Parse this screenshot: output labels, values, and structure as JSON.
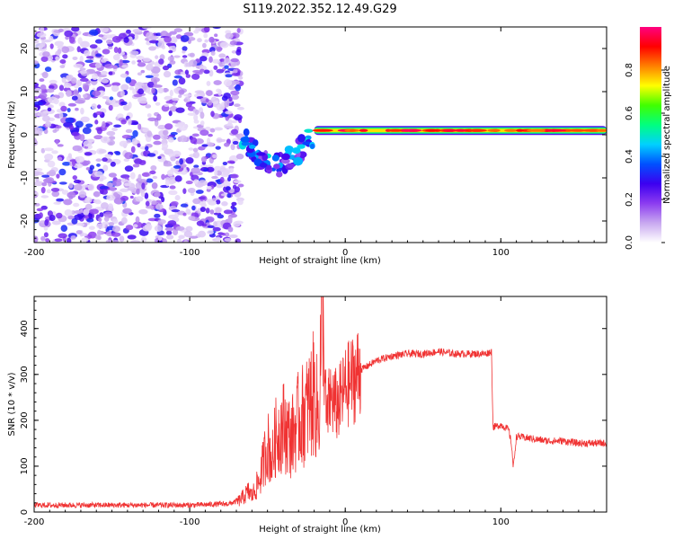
{
  "figure_title": "S119.2022.352.12.49.G29",
  "chart_data": [
    {
      "type": "heatmap",
      "xlabel": "Height of straight line (km)",
      "ylabel": "Frequency (Hz)",
      "xlim": [
        -200,
        168
      ],
      "ylim": [
        -25,
        25
      ],
      "x_ticks": [
        "-200",
        "-100",
        "0",
        "100"
      ],
      "y_ticks": [
        "20",
        "10",
        "0",
        "-10",
        "-20"
      ],
      "colorbar": {
        "label": "Normalized spectral amplitude",
        "range": [
          0,
          1
        ],
        "ticks": [
          "0.0",
          "0.2",
          "0.4",
          "0.6",
          "0.8"
        ],
        "colormap": [
          "#ffffff",
          "#c8a8f0",
          "#8c3cf0",
          "#3c00f0",
          "#0050ff",
          "#00d0ff",
          "#00ff80",
          "#40ff00",
          "#ffff00",
          "#ff8000",
          "#ff0000",
          "#ff0080"
        ]
      },
      "regions": [
        {
          "x_range": [
            -200,
            -67
          ],
          "description_value": "broadband noise, amplitude 0.05-0.3"
        },
        {
          "x_range": [
            -67,
            -20
          ],
          "freq_hz": [
            0,
            -8
          ],
          "amplitude": 0.3
        },
        {
          "x_range": [
            -20,
            168
          ],
          "freq_hz": 1,
          "amplitude": 0.9
        }
      ]
    },
    {
      "type": "line",
      "xlabel": "Height of straight line (km)",
      "ylabel": "SNR (10 * v/v)",
      "xlim": [
        -200,
        168
      ],
      "ylim": [
        0,
        470
      ],
      "x_ticks": [
        "-200",
        "-100",
        "0",
        "100"
      ],
      "y_ticks": [
        "0",
        "100",
        "200",
        "300",
        "400"
      ],
      "color": "#f03232",
      "series": [
        {
          "x": [
            -200,
            -150,
            -100,
            -75,
            -68,
            -62,
            -60,
            -55,
            -50,
            -47,
            -45,
            -40,
            -35,
            -30,
            -25,
            -20,
            -17,
            -15,
            -12,
            -10,
            -5,
            0,
            5,
            10,
            20,
            30,
            40,
            50,
            60,
            70,
            80,
            90,
            94,
            95,
            100,
            105,
            107,
            108,
            110,
            120,
            130,
            140,
            150,
            160,
            168
          ],
          "y": [
            15,
            15,
            15,
            18,
            25,
            45,
            35,
            70,
            150,
            110,
            160,
            190,
            160,
            200,
            220,
            260,
            200,
            460,
            190,
            250,
            230,
            270,
            290,
            310,
            330,
            340,
            345,
            345,
            350,
            345,
            345,
            345,
            350,
            185,
            190,
            180,
            145,
            95,
            165,
            160,
            155,
            155,
            150,
            150,
            150
          ]
        }
      ]
    }
  ]
}
